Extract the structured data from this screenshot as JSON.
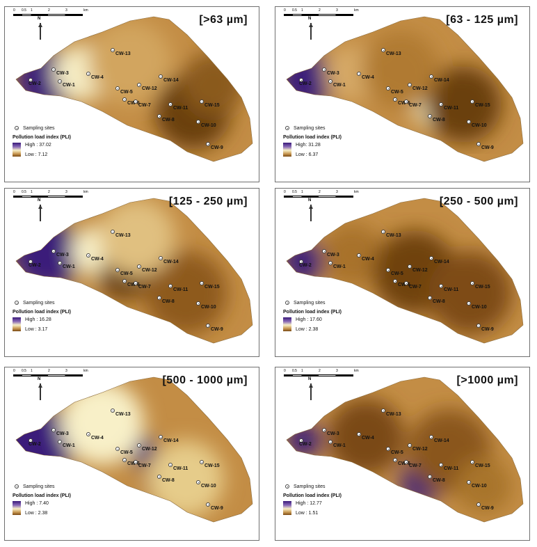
{
  "panels": [
    {
      "title": "[>63 µm]",
      "legend_high": "High : 37.02",
      "legend_low": "Low : 7.12"
    },
    {
      "title": "[63 - 125 µm]",
      "legend_high": "High: 31.28",
      "legend_low": "Low : 6.37"
    },
    {
      "title": "[125 - 250 µm]",
      "legend_high": "High : 16.28",
      "legend_low": "Low : 3.17"
    },
    {
      "title": "[250 - 500 µm]",
      "legend_high": "High : 17.60",
      "legend_low": "Low : 2.38"
    },
    {
      "title": "[500 - 1000 µm]",
      "legend_high": "High : 7.40",
      "legend_low": "Low : 2.38"
    },
    {
      "title": "[>1000 µm]",
      "legend_high": "High : 12.77",
      "legend_low": "Low : 1.51"
    }
  ],
  "legend": {
    "sites_label": "Sampling sites",
    "title": "Pollution load index (PLI)"
  },
  "scale_ticks": [
    "0",
    "0.5",
    "1",
    "2",
    "3",
    "km"
  ],
  "north_label": "N",
  "sites": [
    "CW-1",
    "CW-2",
    "CW-3",
    "CW-4",
    "CW-5",
    "CW-6",
    "CW-7",
    "CW-8",
    "CW-9",
    "CW-10",
    "CW-11",
    "CW-12",
    "CW-13",
    "CW-14",
    "CW-15"
  ],
  "colors": {
    "high": "#3a1a7a",
    "mid": "#f8f0c8",
    "low": "#7a4a14",
    "frame": "#6f6f6f"
  }
}
